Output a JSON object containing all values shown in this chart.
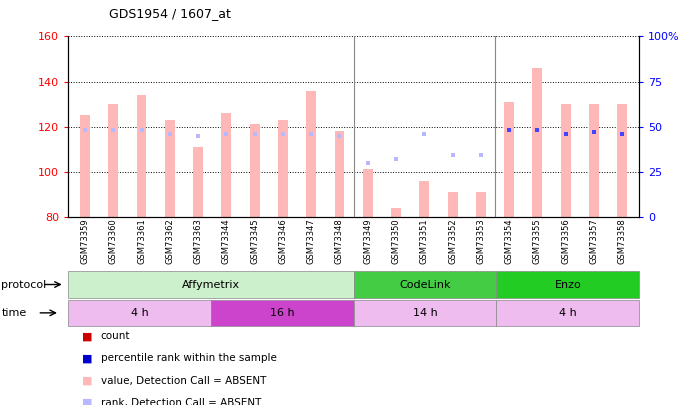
{
  "title": "GDS1954 / 1607_at",
  "samples": [
    "GSM73359",
    "GSM73360",
    "GSM73361",
    "GSM73362",
    "GSM73363",
    "GSM73344",
    "GSM73345",
    "GSM73346",
    "GSM73347",
    "GSM73348",
    "GSM73349",
    "GSM73350",
    "GSM73351",
    "GSM73352",
    "GSM73353",
    "GSM73354",
    "GSM73355",
    "GSM73356",
    "GSM73357",
    "GSM73358"
  ],
  "values": [
    125,
    130,
    134,
    123,
    111,
    126,
    121,
    123,
    136,
    118,
    101,
    84,
    96,
    91,
    91,
    131,
    146,
    130,
    130,
    130
  ],
  "ranks": [
    48,
    48,
    48,
    46,
    45,
    46,
    46,
    46,
    46,
    45,
    30,
    32,
    46,
    34,
    34,
    48,
    48,
    46,
    47,
    46
  ],
  "rank_absent": [
    true,
    true,
    true,
    true,
    true,
    true,
    true,
    true,
    true,
    true,
    true,
    true,
    true,
    true,
    true,
    false,
    false,
    false,
    false,
    false
  ],
  "value_absent": [
    true,
    true,
    true,
    true,
    true,
    true,
    true,
    true,
    true,
    true,
    true,
    true,
    true,
    true,
    true,
    true,
    true,
    true,
    true,
    true
  ],
  "ylim_left": [
    80,
    160
  ],
  "ylim_right": [
    0,
    100
  ],
  "yticks_left": [
    80,
    100,
    120,
    140,
    160
  ],
  "yticks_right": [
    0,
    25,
    50,
    75,
    100
  ],
  "protocol_groups": [
    {
      "label": "Affymetrix",
      "start": 0,
      "end": 10,
      "color": "#ccf0cc"
    },
    {
      "label": "CodeLink",
      "start": 10,
      "end": 15,
      "color": "#44cc44"
    },
    {
      "label": "Enzo",
      "start": 15,
      "end": 20,
      "color": "#22cc22"
    }
  ],
  "time_groups": [
    {
      "label": "4 h",
      "start": 0,
      "end": 5,
      "color": "#eebcee"
    },
    {
      "label": "16 h",
      "start": 5,
      "end": 10,
      "color": "#cc44cc"
    },
    {
      "label": "14 h",
      "start": 10,
      "end": 15,
      "color": "#eebcee"
    },
    {
      "label": "4 h",
      "start": 15,
      "end": 20,
      "color": "#eebcee"
    }
  ],
  "bar_color_absent": "#ffb8b8",
  "rank_color_absent": "#b8b8ff",
  "rank_color_present": "#4444ff",
  "legend_items": [
    {
      "color": "#cc0000",
      "marker": "s",
      "label": "count"
    },
    {
      "color": "#0000cc",
      "marker": "s",
      "label": "percentile rank within the sample"
    },
    {
      "color": "#ffb8b8",
      "marker": "s",
      "label": "value, Detection Call = ABSENT"
    },
    {
      "color": "#b8b8ff",
      "marker": "s",
      "label": "rank, Detection Call = ABSENT"
    }
  ],
  "group_separators": [
    9.5,
    14.5
  ],
  "bg_color": "#ffffff"
}
